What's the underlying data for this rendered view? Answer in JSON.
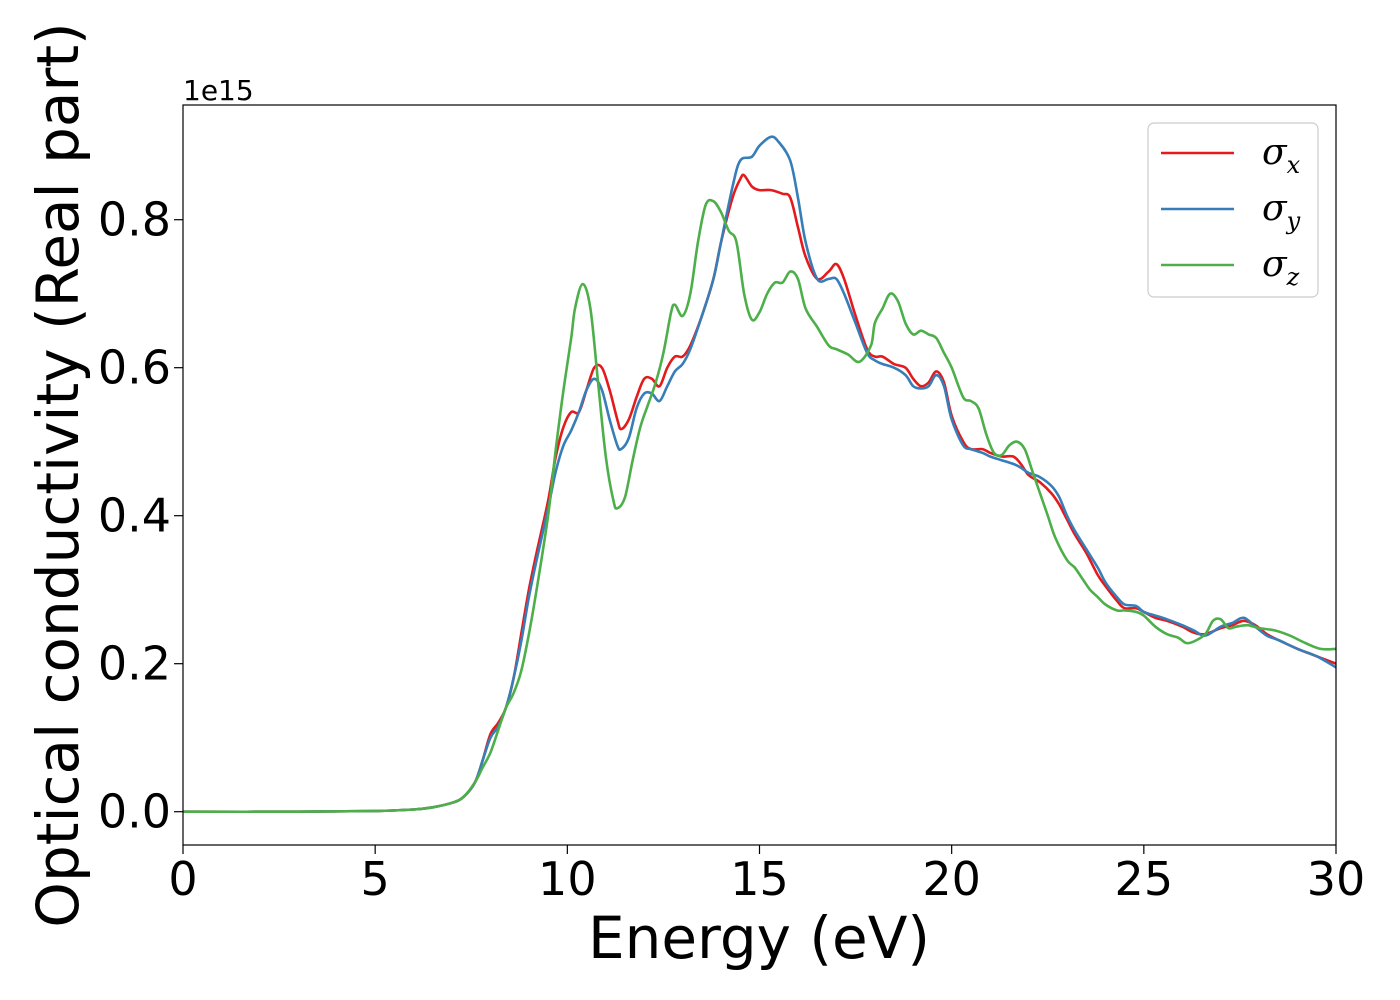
{
  "chart_data": {
    "type": "line",
    "xlabel": "Energy (eV)",
    "ylabel": "Optical conductivity (Real part)",
    "y_offset_text": "1e15",
    "xlim": [
      0,
      30
    ],
    "ylim": [
      -0.045,
      0.955
    ],
    "x_ticks": [
      0,
      5,
      10,
      15,
      20,
      25,
      30
    ],
    "y_ticks": [
      0.0,
      0.2,
      0.4,
      0.6,
      0.8
    ],
    "y_tick_labels": [
      "0.0",
      "0.2",
      "0.4",
      "0.6",
      "0.8"
    ],
    "grid": false,
    "legend_position": "top-right",
    "series": [
      {
        "name": "σx",
        "symbol": "σ",
        "subscript": "x",
        "color": "#e41a1c",
        "points": [
          [
            0,
            0.0
          ],
          [
            3,
            0.0
          ],
          [
            5,
            0.001
          ],
          [
            6,
            0.003
          ],
          [
            6.5,
            0.006
          ],
          [
            7,
            0.012
          ],
          [
            7.3,
            0.02
          ],
          [
            7.6,
            0.04
          ],
          [
            7.8,
            0.07
          ],
          [
            8.0,
            0.105
          ],
          [
            8.2,
            0.12
          ],
          [
            8.4,
            0.14
          ],
          [
            8.6,
            0.18
          ],
          [
            8.8,
            0.24
          ],
          [
            9.0,
            0.3
          ],
          [
            9.2,
            0.35
          ],
          [
            9.5,
            0.42
          ],
          [
            9.7,
            0.48
          ],
          [
            9.9,
            0.52
          ],
          [
            10.1,
            0.54
          ],
          [
            10.3,
            0.54
          ],
          [
            10.5,
            0.57
          ],
          [
            10.7,
            0.6
          ],
          [
            10.9,
            0.6
          ],
          [
            11.1,
            0.57
          ],
          [
            11.3,
            0.53
          ],
          [
            11.4,
            0.517
          ],
          [
            11.6,
            0.53
          ],
          [
            11.8,
            0.56
          ],
          [
            12.0,
            0.585
          ],
          [
            12.2,
            0.585
          ],
          [
            12.4,
            0.575
          ],
          [
            12.6,
            0.6
          ],
          [
            12.8,
            0.615
          ],
          [
            13.0,
            0.615
          ],
          [
            13.2,
            0.63
          ],
          [
            13.5,
            0.67
          ],
          [
            13.8,
            0.72
          ],
          [
            14.0,
            0.77
          ],
          [
            14.3,
            0.83
          ],
          [
            14.5,
            0.855
          ],
          [
            14.6,
            0.86
          ],
          [
            14.8,
            0.845
          ],
          [
            15.0,
            0.84
          ],
          [
            15.3,
            0.84
          ],
          [
            15.6,
            0.835
          ],
          [
            15.8,
            0.83
          ],
          [
            16.0,
            0.79
          ],
          [
            16.2,
            0.75
          ],
          [
            16.5,
            0.72
          ],
          [
            16.8,
            0.73
          ],
          [
            17.0,
            0.74
          ],
          [
            17.2,
            0.72
          ],
          [
            17.5,
            0.67
          ],
          [
            17.8,
            0.625
          ],
          [
            18.0,
            0.615
          ],
          [
            18.2,
            0.615
          ],
          [
            18.5,
            0.605
          ],
          [
            18.8,
            0.6
          ],
          [
            19.0,
            0.585
          ],
          [
            19.2,
            0.575
          ],
          [
            19.4,
            0.58
          ],
          [
            19.6,
            0.595
          ],
          [
            19.8,
            0.58
          ],
          [
            20.0,
            0.535
          ],
          [
            20.3,
            0.5
          ],
          [
            20.5,
            0.49
          ],
          [
            20.8,
            0.49
          ],
          [
            21.0,
            0.485
          ],
          [
            21.3,
            0.48
          ],
          [
            21.6,
            0.48
          ],
          [
            21.8,
            0.47
          ],
          [
            22.0,
            0.455
          ],
          [
            22.3,
            0.445
          ],
          [
            22.6,
            0.43
          ],
          [
            22.8,
            0.415
          ],
          [
            23.0,
            0.395
          ],
          [
            23.2,
            0.375
          ],
          [
            23.5,
            0.35
          ],
          [
            23.8,
            0.32
          ],
          [
            24.0,
            0.305
          ],
          [
            24.3,
            0.285
          ],
          [
            24.5,
            0.275
          ],
          [
            24.8,
            0.275
          ],
          [
            25.0,
            0.27
          ],
          [
            25.3,
            0.262
          ],
          [
            25.6,
            0.258
          ],
          [
            26.0,
            0.25
          ],
          [
            26.3,
            0.242
          ],
          [
            26.6,
            0.24
          ],
          [
            27.0,
            0.248
          ],
          [
            27.3,
            0.252
          ],
          [
            27.6,
            0.258
          ],
          [
            27.9,
            0.252
          ],
          [
            28.2,
            0.24
          ],
          [
            28.5,
            0.232
          ],
          [
            29.0,
            0.22
          ],
          [
            29.5,
            0.21
          ],
          [
            30.0,
            0.2
          ]
        ]
      },
      {
        "name": "σy",
        "symbol": "σ",
        "subscript": "y",
        "color": "#377eb8",
        "points": [
          [
            0,
            0.0
          ],
          [
            3,
            0.0
          ],
          [
            5,
            0.001
          ],
          [
            6,
            0.003
          ],
          [
            6.5,
            0.006
          ],
          [
            7,
            0.012
          ],
          [
            7.3,
            0.02
          ],
          [
            7.6,
            0.04
          ],
          [
            7.8,
            0.07
          ],
          [
            8.0,
            0.1
          ],
          [
            8.2,
            0.115
          ],
          [
            8.4,
            0.14
          ],
          [
            8.6,
            0.18
          ],
          [
            8.8,
            0.23
          ],
          [
            9.0,
            0.29
          ],
          [
            9.2,
            0.34
          ],
          [
            9.5,
            0.41
          ],
          [
            9.7,
            0.46
          ],
          [
            9.9,
            0.495
          ],
          [
            10.1,
            0.515
          ],
          [
            10.3,
            0.54
          ],
          [
            10.5,
            0.57
          ],
          [
            10.7,
            0.585
          ],
          [
            10.9,
            0.57
          ],
          [
            11.1,
            0.53
          ],
          [
            11.3,
            0.495
          ],
          [
            11.4,
            0.49
          ],
          [
            11.6,
            0.505
          ],
          [
            11.8,
            0.545
          ],
          [
            12.0,
            0.565
          ],
          [
            12.2,
            0.565
          ],
          [
            12.4,
            0.555
          ],
          [
            12.6,
            0.575
          ],
          [
            12.8,
            0.595
          ],
          [
            13.0,
            0.605
          ],
          [
            13.2,
            0.625
          ],
          [
            13.5,
            0.67
          ],
          [
            13.8,
            0.72
          ],
          [
            14.0,
            0.77
          ],
          [
            14.3,
            0.845
          ],
          [
            14.5,
            0.88
          ],
          [
            14.8,
            0.885
          ],
          [
            15.0,
            0.9
          ],
          [
            15.3,
            0.912
          ],
          [
            15.5,
            0.905
          ],
          [
            15.8,
            0.88
          ],
          [
            16.0,
            0.83
          ],
          [
            16.2,
            0.77
          ],
          [
            16.5,
            0.72
          ],
          [
            16.8,
            0.72
          ],
          [
            17.0,
            0.72
          ],
          [
            17.2,
            0.7
          ],
          [
            17.5,
            0.66
          ],
          [
            17.8,
            0.62
          ],
          [
            18.0,
            0.61
          ],
          [
            18.2,
            0.605
          ],
          [
            18.5,
            0.6
          ],
          [
            18.8,
            0.59
          ],
          [
            19.0,
            0.575
          ],
          [
            19.2,
            0.572
          ],
          [
            19.4,
            0.575
          ],
          [
            19.6,
            0.59
          ],
          [
            19.8,
            0.575
          ],
          [
            20.0,
            0.53
          ],
          [
            20.3,
            0.495
          ],
          [
            20.5,
            0.49
          ],
          [
            20.8,
            0.485
          ],
          [
            21.0,
            0.48
          ],
          [
            21.3,
            0.475
          ],
          [
            21.6,
            0.47
          ],
          [
            21.8,
            0.465
          ],
          [
            22.0,
            0.458
          ],
          [
            22.3,
            0.452
          ],
          [
            22.6,
            0.44
          ],
          [
            22.8,
            0.425
          ],
          [
            23.0,
            0.4
          ],
          [
            23.2,
            0.38
          ],
          [
            23.5,
            0.355
          ],
          [
            23.8,
            0.33
          ],
          [
            24.0,
            0.31
          ],
          [
            24.3,
            0.29
          ],
          [
            24.5,
            0.28
          ],
          [
            24.8,
            0.278
          ],
          [
            25.0,
            0.27
          ],
          [
            25.3,
            0.265
          ],
          [
            25.6,
            0.26
          ],
          [
            26.0,
            0.252
          ],
          [
            26.3,
            0.245
          ],
          [
            26.6,
            0.238
          ],
          [
            27.0,
            0.25
          ],
          [
            27.3,
            0.255
          ],
          [
            27.6,
            0.262
          ],
          [
            27.9,
            0.25
          ],
          [
            28.2,
            0.238
          ],
          [
            28.5,
            0.232
          ],
          [
            29.0,
            0.22
          ],
          [
            29.5,
            0.21
          ],
          [
            30.0,
            0.195
          ]
        ]
      },
      {
        "name": "σz",
        "symbol": "σ",
        "subscript": "z",
        "color": "#4daf4a",
        "points": [
          [
            0,
            0.0
          ],
          [
            3,
            0.0
          ],
          [
            5,
            0.001
          ],
          [
            6,
            0.003
          ],
          [
            6.5,
            0.006
          ],
          [
            7,
            0.012
          ],
          [
            7.3,
            0.02
          ],
          [
            7.6,
            0.04
          ],
          [
            7.8,
            0.06
          ],
          [
            8.0,
            0.08
          ],
          [
            8.2,
            0.11
          ],
          [
            8.4,
            0.14
          ],
          [
            8.6,
            0.16
          ],
          [
            8.8,
            0.19
          ],
          [
            9.0,
            0.24
          ],
          [
            9.2,
            0.3
          ],
          [
            9.5,
            0.4
          ],
          [
            9.7,
            0.49
          ],
          [
            9.9,
            0.57
          ],
          [
            10.1,
            0.64
          ],
          [
            10.2,
            0.68
          ],
          [
            10.4,
            0.713
          ],
          [
            10.6,
            0.68
          ],
          [
            10.8,
            0.58
          ],
          [
            11.0,
            0.48
          ],
          [
            11.2,
            0.42
          ],
          [
            11.3,
            0.41
          ],
          [
            11.5,
            0.425
          ],
          [
            11.7,
            0.475
          ],
          [
            11.9,
            0.52
          ],
          [
            12.1,
            0.55
          ],
          [
            12.3,
            0.58
          ],
          [
            12.5,
            0.62
          ],
          [
            12.7,
            0.675
          ],
          [
            12.8,
            0.685
          ],
          [
            13.0,
            0.67
          ],
          [
            13.2,
            0.7
          ],
          [
            13.4,
            0.77
          ],
          [
            13.6,
            0.82
          ],
          [
            13.8,
            0.825
          ],
          [
            14.0,
            0.81
          ],
          [
            14.2,
            0.785
          ],
          [
            14.4,
            0.77
          ],
          [
            14.6,
            0.7
          ],
          [
            14.8,
            0.665
          ],
          [
            15.0,
            0.675
          ],
          [
            15.2,
            0.7
          ],
          [
            15.4,
            0.715
          ],
          [
            15.6,
            0.715
          ],
          [
            15.8,
            0.73
          ],
          [
            16.0,
            0.72
          ],
          [
            16.2,
            0.68
          ],
          [
            16.5,
            0.655
          ],
          [
            16.8,
            0.63
          ],
          [
            17.0,
            0.625
          ],
          [
            17.3,
            0.618
          ],
          [
            17.6,
            0.608
          ],
          [
            17.9,
            0.63
          ],
          [
            18.0,
            0.66
          ],
          [
            18.2,
            0.68
          ],
          [
            18.4,
            0.7
          ],
          [
            18.6,
            0.69
          ],
          [
            18.8,
            0.66
          ],
          [
            19.0,
            0.645
          ],
          [
            19.2,
            0.65
          ],
          [
            19.4,
            0.645
          ],
          [
            19.6,
            0.64
          ],
          [
            19.8,
            0.62
          ],
          [
            20.0,
            0.6
          ],
          [
            20.3,
            0.56
          ],
          [
            20.5,
            0.555
          ],
          [
            20.7,
            0.545
          ],
          [
            20.9,
            0.51
          ],
          [
            21.1,
            0.485
          ],
          [
            21.3,
            0.482
          ],
          [
            21.5,
            0.495
          ],
          [
            21.7,
            0.5
          ],
          [
            21.9,
            0.49
          ],
          [
            22.1,
            0.46
          ],
          [
            22.3,
            0.43
          ],
          [
            22.5,
            0.4
          ],
          [
            22.7,
            0.37
          ],
          [
            23.0,
            0.34
          ],
          [
            23.2,
            0.33
          ],
          [
            23.4,
            0.315
          ],
          [
            23.6,
            0.3
          ],
          [
            23.8,
            0.29
          ],
          [
            24.0,
            0.28
          ],
          [
            24.3,
            0.272
          ],
          [
            24.5,
            0.272
          ],
          [
            24.8,
            0.27
          ],
          [
            25.0,
            0.265
          ],
          [
            25.3,
            0.25
          ],
          [
            25.6,
            0.24
          ],
          [
            25.9,
            0.235
          ],
          [
            26.1,
            0.228
          ],
          [
            26.3,
            0.23
          ],
          [
            26.6,
            0.24
          ],
          [
            26.8,
            0.258
          ],
          [
            27.0,
            0.26
          ],
          [
            27.2,
            0.248
          ],
          [
            27.4,
            0.25
          ],
          [
            27.7,
            0.252
          ],
          [
            28.0,
            0.248
          ],
          [
            28.4,
            0.245
          ],
          [
            28.8,
            0.238
          ],
          [
            29.2,
            0.228
          ],
          [
            29.6,
            0.22
          ],
          [
            30.0,
            0.22
          ]
        ]
      }
    ]
  }
}
